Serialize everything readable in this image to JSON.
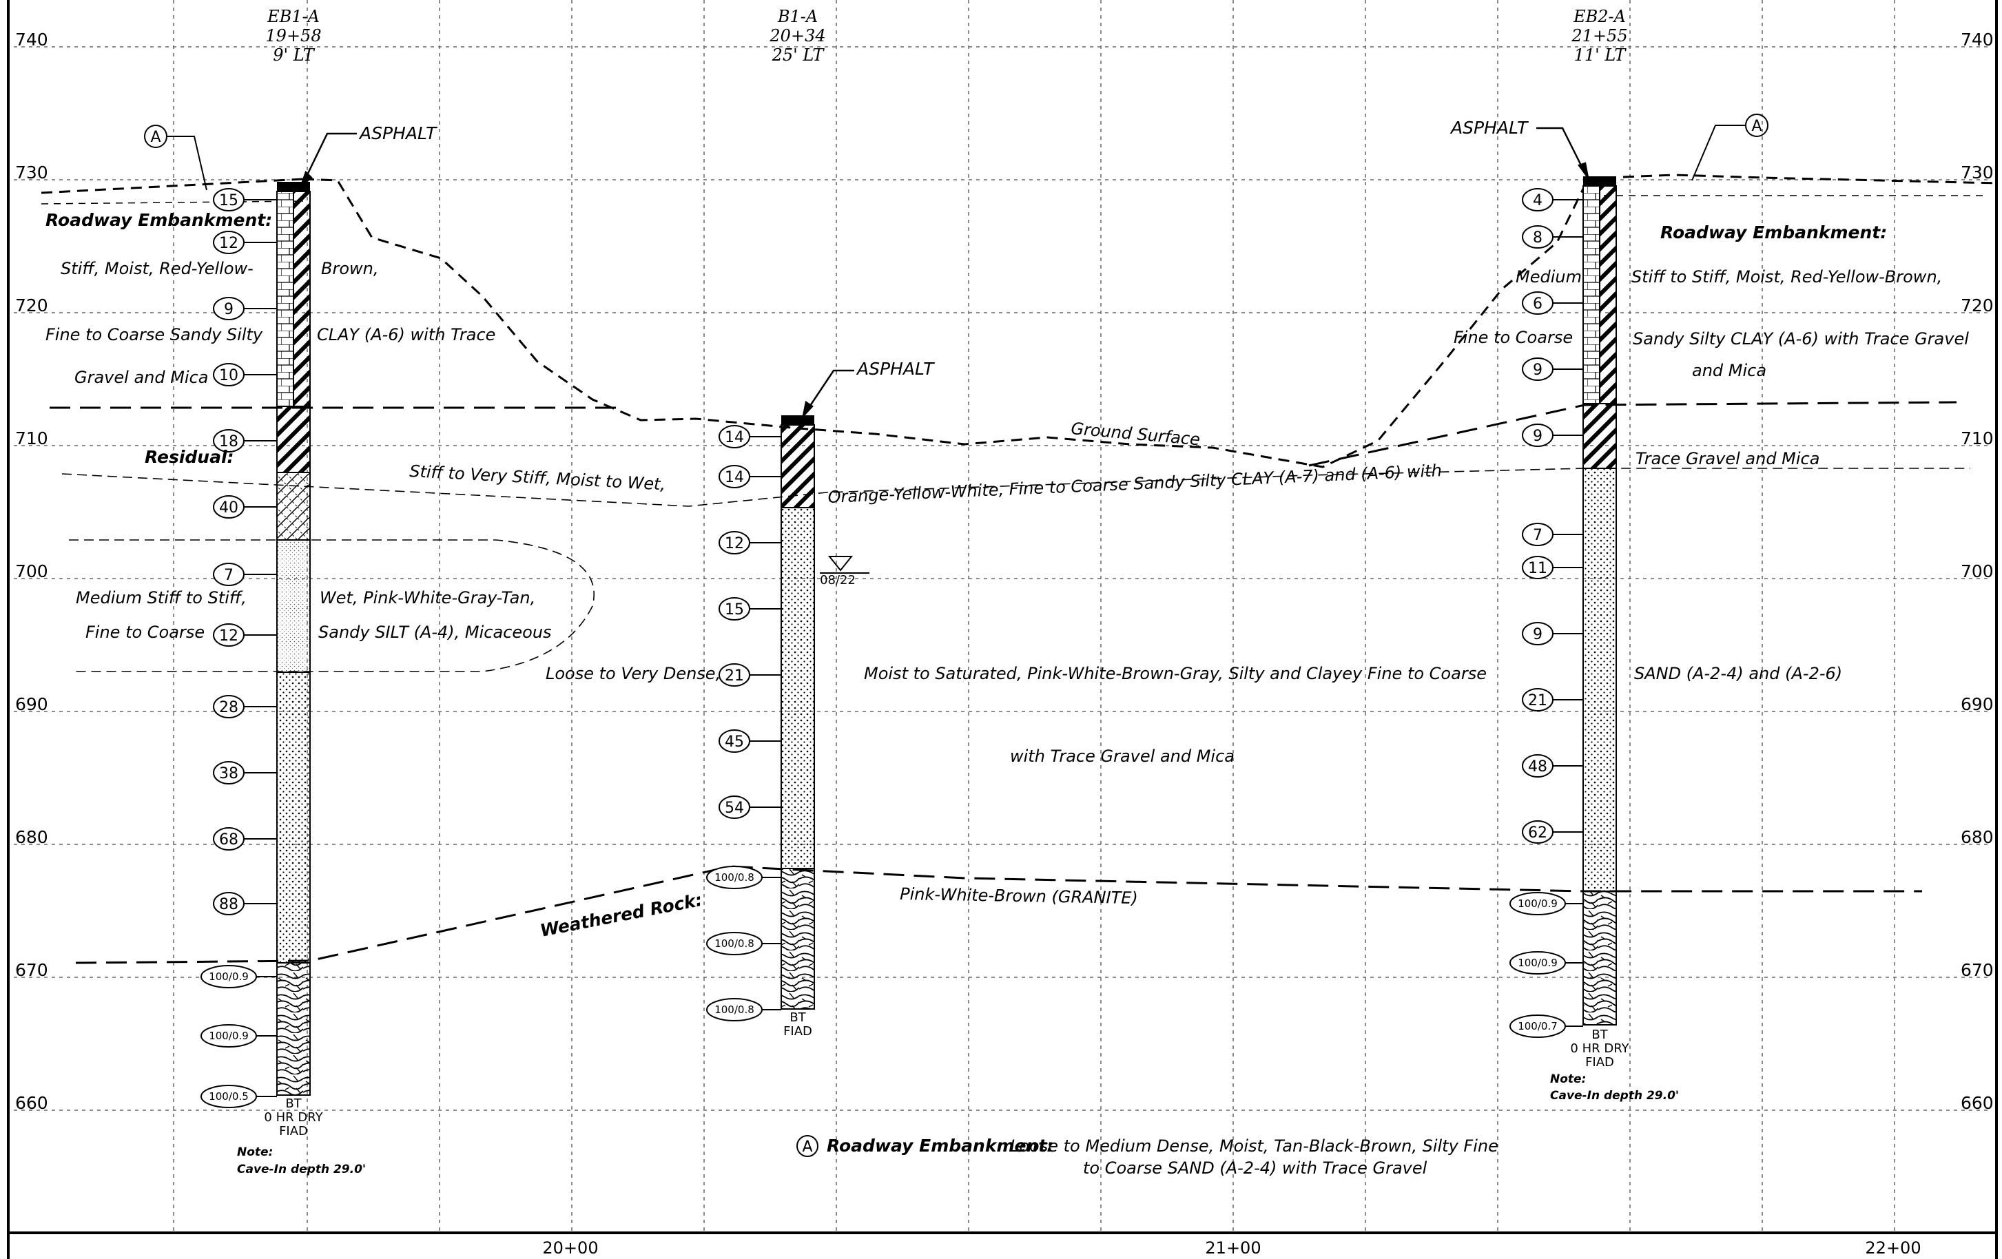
{
  "elevation_labels": [
    "740",
    "730",
    "720",
    "710",
    "700",
    "690",
    "680",
    "670",
    "660"
  ],
  "station_labels": [
    "20+00",
    "21+00",
    "22+00"
  ],
  "borings": [
    {
      "id": "EB1-A",
      "station": "19+58",
      "offset": "9' LT",
      "blows": [
        "15",
        "12",
        "9",
        "10",
        "18",
        "40",
        "7",
        "12",
        "28",
        "38",
        "68",
        "88",
        "100/0.9",
        "100/0.9",
        "100/0.5"
      ],
      "bottom": [
        "BT",
        "0 HR DRY",
        "FIAD"
      ]
    },
    {
      "id": "B1-A",
      "station": "20+34",
      "offset": "25' LT",
      "blows": [
        "14",
        "14",
        "12",
        "15",
        "21",
        "45",
        "54",
        "100/0.8",
        "100/0.8",
        "100/0.8"
      ],
      "bottom": [
        "BT",
        "FIAD"
      ]
    },
    {
      "id": "EB2-A",
      "station": "21+55",
      "offset": "11' LT",
      "blows": [
        "4",
        "8",
        "6",
        "9",
        "9",
        "7",
        "11",
        "9",
        "21",
        "48",
        "62",
        "100/0.9",
        "100/0.9",
        "100/0.7"
      ],
      "bottom": [
        "BT",
        "0 HR DRY",
        "FIAD"
      ]
    }
  ],
  "labels": {
    "asphalt": "ASPHALT",
    "circle_a": "A",
    "roadway_embankment": "Roadway Embankment:",
    "residual": "Residual:",
    "weathered_rock": "Weathered Rock:",
    "ground_surface": "Ground Surface",
    "water_date": "08/22",
    "note_title": "Note:",
    "cave_in": "Cave-In depth 29.0'"
  },
  "descriptions": {
    "l_emb1": "Stiff, Moist, Red-Yellow-",
    "l_emb1b": "Brown,",
    "l_emb2": "Fine to Coarse Sandy Silty",
    "l_emb2b": "CLAY (A-6) with Trace",
    "l_emb3": "Gravel and Mica",
    "r_emb0": "Medium",
    "r_emb1": "Stiff to Stiff, Moist, Red-Yellow-Brown,",
    "r_emb2a": "Fine to Coarse",
    "r_emb2b": "Sandy Silty CLAY (A-6) with Trace Gravel",
    "r_emb3": "and Mica",
    "res1": "Stiff to Very Stiff, Moist to Wet,",
    "res2": "Orange-Yellow-White, Fine to Coarse Sandy Silty CLAY (A-7) and (A-6) with",
    "res3": "Trace Gravel and Mica",
    "silt1a": "Medium Stiff to Stiff,",
    "silt1b": "Wet, Pink-White-Gray-Tan,",
    "silt2a": "Fine to Coarse",
    "silt2b": "Sandy SILT (A-4), Micaceous",
    "sand1a": "Loose to Very Dense,",
    "sand1b": "Moist to Saturated, Pink-White-Brown-Gray, Silty and Clayey Fine to Coarse",
    "sand1c": "SAND (A-2-4) and (A-2-6)",
    "sand2": "with Trace Gravel and Mica",
    "rock": "Pink-White-Brown (GRANITE)",
    "legend_a_title": "Roadway Embankment:",
    "legend_a_1": "Loose to Medium Dense, Moist, Tan-Black-Brown, Silty Fine",
    "legend_a_2": "to Coarse SAND (A-2-4) with Trace Gravel"
  },
  "colors": {
    "line": "#000000",
    "grid": "#555555",
    "background": "#ffffff"
  }
}
